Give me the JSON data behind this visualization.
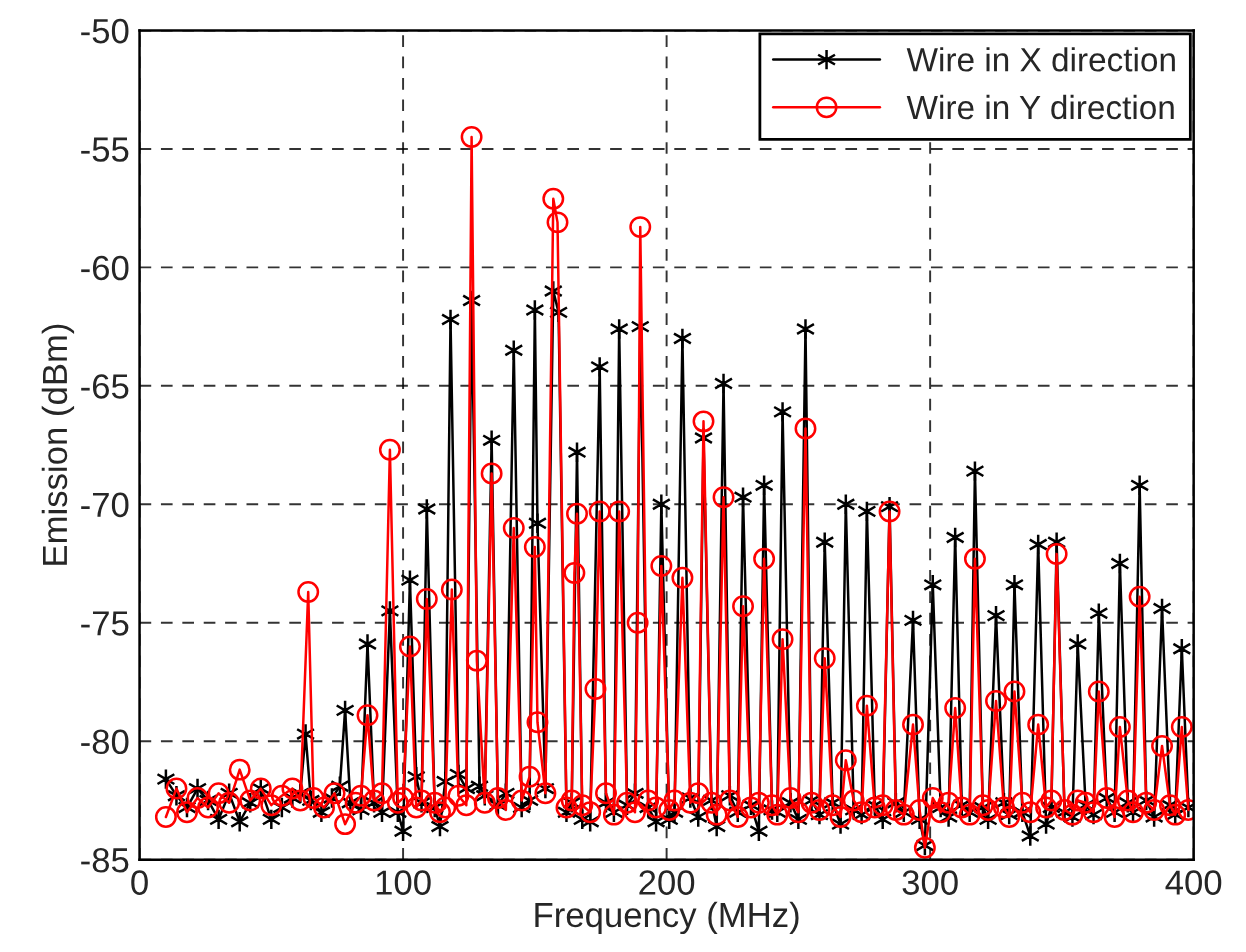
{
  "chart_data": {
    "type": "line",
    "xlabel": "Frequency (MHz)",
    "ylabel": "Emission (dBm)",
    "xlim": [
      0,
      400
    ],
    "ylim": [
      -85,
      -50
    ],
    "xticks": [
      0,
      100,
      200,
      300,
      400
    ],
    "yticks": [
      -85,
      -80,
      -75,
      -70,
      -65,
      -60,
      -55,
      -50
    ],
    "grid": true,
    "legend": "top right",
    "line_style": "solid",
    "series": [
      {
        "name": "Wire in X direction",
        "color": "#000000",
        "marker": "cross",
        "x": [
          10,
          14,
          18,
          22,
          26,
          30,
          34,
          38,
          42,
          46,
          50,
          54,
          58,
          61,
          63,
          65,
          69,
          73,
          76,
          78,
          80,
          84,
          86.5,
          89,
          92,
          95,
          98,
          100,
          102.6,
          105,
          107,
          109,
          112,
          114,
          116,
          118,
          121,
          124,
          126,
          129,
          131,
          133.6,
          136,
          139,
          142,
          145,
          148,
          150,
          151,
          154,
          157,
          159,
          162,
          164,
          166,
          168,
          171,
          174.6,
          177,
          180,
          182,
          185,
          188,
          190,
          193,
          196,
          198,
          201,
          203,
          206,
          209,
          212,
          214,
          217,
          219,
          221.6,
          224,
          227,
          229,
          232,
          235,
          237,
          240,
          242,
          244,
          247,
          250,
          252.7,
          255,
          258,
          260,
          263,
          266,
          268,
          271,
          274,
          276,
          279,
          282,
          284.6,
          287,
          290,
          293.5,
          296,
          298,
          301,
          304,
          307,
          309.5,
          312,
          315,
          317,
          320,
          322,
          325,
          328,
          330,
          332,
          335,
          338,
          341,
          344,
          346,
          348,
          351,
          354,
          356,
          359,
          362,
          364,
          367,
          370,
          372,
          375,
          377,
          379.5,
          382,
          385,
          388,
          391,
          393,
          395.5,
          398
        ],
        "values": [
          -81.6,
          -82.3,
          -82.8,
          -82.0,
          -82.5,
          -83.3,
          -82.2,
          -83.4,
          -82.6,
          -82.0,
          -83.3,
          -82.8,
          -82.4,
          -82.2,
          -79.7,
          -82.5,
          -83.0,
          -82.4,
          -81.9,
          -78.7,
          -82.6,
          -82.9,
          -75.9,
          -82.6,
          -83.0,
          -74.5,
          -83.0,
          -83.8,
          -73.2,
          -81.5,
          -82.6,
          -70.2,
          -82.8,
          -83.6,
          -81.7,
          -62.2,
          -81.4,
          -82.0,
          -61.4,
          -81.9,
          -82.3,
          -67.3,
          -82.7,
          -82.2,
          -63.5,
          -82.8,
          -82.5,
          -61.8,
          -70.8,
          -82.0,
          -61.0,
          -61.9,
          -83.0,
          -82.6,
          -67.8,
          -83.3,
          -83.4,
          -64.2,
          -82.6,
          -83.0,
          -62.6,
          -82.7,
          -82.2,
          -62.5,
          -82.8,
          -83.4,
          -70.0,
          -83.3,
          -83.0,
          -63.0,
          -82.4,
          -83.2,
          -67.2,
          -82.5,
          -83.6,
          -64.9,
          -82.3,
          -83.0,
          -69.7,
          -82.7,
          -83.8,
          -69.2,
          -82.9,
          -83.0,
          -66.1,
          -82.6,
          -83.3,
          -62.6,
          -82.5,
          -83.1,
          -71.6,
          -82.6,
          -83.5,
          -70.0,
          -82.9,
          -83.1,
          -70.3,
          -82.7,
          -83.3,
          -70.1,
          -82.6,
          -83.0,
          -74.9,
          -83.3,
          -84.4,
          -73.4,
          -82.8,
          -83.2,
          -71.4,
          -82.7,
          -83.0,
          -68.6,
          -82.8,
          -83.3,
          -74.7,
          -82.6,
          -83.1,
          -73.4,
          -83.0,
          -84.0,
          -71.7,
          -83.5,
          -82.8,
          -71.6,
          -83.0,
          -83.2,
          -75.9,
          -82.7,
          -83.1,
          -74.6,
          -82.4,
          -83.0,
          -72.5,
          -82.6,
          -83.0,
          -69.2,
          -82.5,
          -83.2,
          -74.4,
          -82.7,
          -83.1,
          -76.1,
          -82.8
        ]
      },
      {
        "name": "Wire in Y direction",
        "color": "#ff0000",
        "marker": "circle",
        "x": [
          10,
          14,
          18,
          22,
          26,
          30,
          34,
          38,
          42,
          46,
          50,
          54,
          58,
          61,
          64,
          66,
          70,
          74,
          78,
          82,
          84,
          86.5,
          89,
          92,
          95,
          98,
          100,
          102.6,
          105,
          107,
          109,
          112,
          114,
          116,
          118.5,
          121,
          124,
          126,
          128,
          131,
          133.6,
          136,
          139,
          142,
          145,
          148,
          150,
          151,
          154,
          157,
          158.6,
          162,
          164,
          165,
          166,
          168,
          171,
          173,
          174.6,
          177,
          180,
          182,
          185,
          188,
          189,
          190,
          193,
          196,
          198,
          201,
          203,
          206,
          209,
          212,
          214,
          217,
          219,
          221.6,
          224,
          227,
          229,
          232,
          235,
          237,
          240,
          242,
          244,
          247,
          250,
          252.7,
          255,
          258,
          260,
          263,
          266,
          268,
          271,
          274,
          276,
          279,
          282,
          284.6,
          287,
          290,
          293.5,
          296,
          298,
          301,
          304,
          307,
          309.5,
          312,
          315,
          317,
          320,
          322,
          325,
          328,
          330,
          332,
          335,
          338,
          341,
          344,
          346,
          348,
          351,
          354,
          356,
          359,
          362,
          364,
          367,
          370,
          372,
          375,
          377,
          379.5,
          382,
          385,
          388,
          391,
          393,
          395.5,
          398
        ],
        "values": [
          -83.2,
          -82.0,
          -83.0,
          -82.4,
          -82.8,
          -82.2,
          -82.6,
          -81.2,
          -82.5,
          -82.0,
          -82.7,
          -82.3,
          -82.0,
          -82.5,
          -73.7,
          -82.4,
          -82.8,
          -82.2,
          -83.5,
          -82.6,
          -82.3,
          -78.9,
          -82.5,
          -82.2,
          -67.7,
          -82.6,
          -82.4,
          -76.0,
          -82.8,
          -82.5,
          -74.0,
          -82.6,
          -83.0,
          -82.8,
          -73.6,
          -82.3,
          -82.7,
          -54.5,
          -76.6,
          -82.6,
          -68.7,
          -82.4,
          -82.9,
          -71.0,
          -82.5,
          -81.5,
          -71.8,
          -79.2,
          -82.2,
          -57.1,
          -58.1,
          -82.8,
          -82.5,
          -72.9,
          -70.4,
          -82.7,
          -83.0,
          -77.8,
          -70.3,
          -82.2,
          -83.1,
          -70.3,
          -82.6,
          -83.0,
          -75.0,
          -58.3,
          -82.5,
          -82.8,
          -72.6,
          -82.9,
          -82.5,
          -73.1,
          -82.6,
          -82.2,
          -66.5,
          -82.6,
          -83.1,
          -69.7,
          -82.5,
          -83.2,
          -74.3,
          -82.8,
          -82.6,
          -72.3,
          -82.7,
          -83.1,
          -75.7,
          -82.4,
          -83.0,
          -66.8,
          -82.6,
          -82.9,
          -76.5,
          -82.7,
          -83.2,
          -80.8,
          -82.5,
          -83.0,
          -78.5,
          -82.8,
          -82.7,
          -70.3,
          -82.9,
          -83.1,
          -79.3,
          -82.9,
          -84.5,
          -82.4,
          -83.0,
          -82.6,
          -78.6,
          -82.8,
          -83.1,
          -72.3,
          -82.7,
          -82.9,
          -78.3,
          -82.8,
          -83.2,
          -77.9,
          -82.6,
          -83.0,
          -79.3,
          -82.8,
          -82.5,
          -72.1,
          -82.9,
          -83.1,
          -82.5,
          -82.6,
          -83.0,
          -77.9,
          -82.4,
          -83.2,
          -79.4,
          -82.5,
          -83.0,
          -73.9,
          -82.6,
          -82.9,
          -80.2,
          -82.7,
          -83.1,
          -79.4,
          -82.9
        ]
      }
    ]
  }
}
